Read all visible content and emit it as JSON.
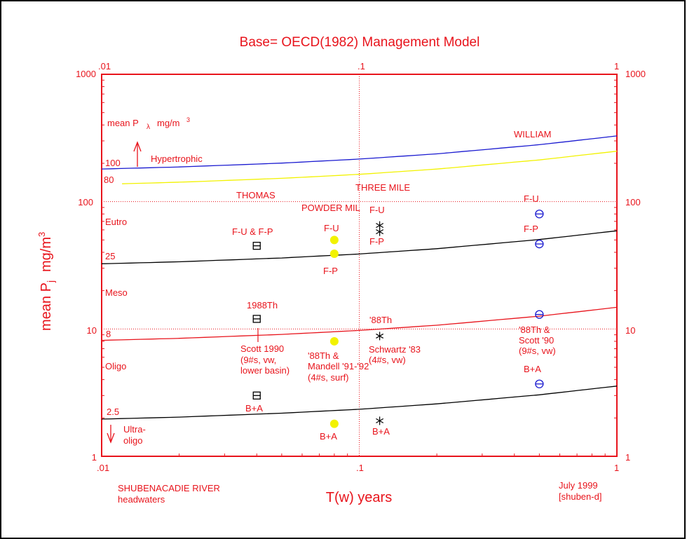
{
  "chart_data": {
    "type": "scatter",
    "title": "Base= OECD(1982) Management Model",
    "xlabel": "T(w) years",
    "ylabel_main": "mean P",
    "ylabel_sub": "j",
    "ylabel_units": "mg/m",
    "ylabel_sup": "3",
    "xscale": "log",
    "yscale": "log",
    "xlim": [
      0.01,
      1
    ],
    "ylim": [
      1,
      1000
    ],
    "x_ticks_top": [
      ".01",
      ".1",
      "1"
    ],
    "x_ticks_bottom": [
      ".01",
      ".1",
      "1"
    ],
    "y_ticks_left": [
      "1000",
      "100",
      "10",
      "1"
    ],
    "y_ticks_right": [
      "1000",
      "100",
      "10",
      "1"
    ],
    "gridlines": {
      "y": [
        10,
        100
      ],
      "x": [
        0.1
      ],
      "style": "dotted"
    },
    "colors": {
      "axis": "#e8141c",
      "blue": "#1a1ad0",
      "yellow": "#f2f200",
      "black": "#000000",
      "red": "#e8141c"
    },
    "curves": [
      {
        "name": "hypertrophic-boundary-100",
        "color": "#1a1ad0",
        "x": [
          0.01,
          0.02,
          0.05,
          0.1,
          0.2,
          0.5,
          1
        ],
        "y": [
          180.4,
          187.2,
          200.7,
          215.9,
          237.3,
          280.0,
          328
        ]
      },
      {
        "name": "boundary-80",
        "color": "#f2f200",
        "x": [
          0.012,
          0.02,
          0.05,
          0.1,
          0.2,
          0.5,
          1
        ],
        "y": [
          138.1,
          142.1,
          152.4,
          163.8,
          180.2,
          212.5,
          249
        ]
      },
      {
        "name": "eutro-boundary-25",
        "color": "#000000",
        "x": [
          0.01,
          0.02,
          0.05,
          0.1,
          0.2,
          0.5,
          1
        ],
        "y": [
          32.5,
          33.7,
          36.1,
          38.8,
          42.7,
          50.4,
          59
        ]
      },
      {
        "name": "meso-boundary-8",
        "color": "#e8141c",
        "x": [
          0.01,
          0.02,
          0.05,
          0.1,
          0.2,
          0.5,
          1
        ],
        "y": [
          8.14,
          8.44,
          9.06,
          9.74,
          10.7,
          12.6,
          14.8
        ]
      },
      {
        "name": "oligo-boundary-2.5",
        "color": "#000000",
        "x": [
          0.01,
          0.02,
          0.05,
          0.1,
          0.2,
          0.5,
          1
        ],
        "y": [
          1.96,
          2.03,
          2.18,
          2.34,
          2.58,
          3.04,
          3.56
        ]
      }
    ],
    "series": [
      {
        "name": "THOMAS",
        "marker": "square",
        "color": "#000000",
        "points": [
          {
            "x": 0.04,
            "y": 45
          },
          {
            "x": 0.04,
            "y": 12
          },
          {
            "x": 0.04,
            "y": 3.0
          }
        ]
      },
      {
        "name": "POWDER MILL",
        "marker": "filled-circle",
        "color": "#f2f200",
        "points": [
          {
            "x": 0.08,
            "y": 50
          },
          {
            "x": 0.08,
            "y": 39
          },
          {
            "x": 0.08,
            "y": 8.0
          },
          {
            "x": 0.08,
            "y": 1.8
          }
        ]
      },
      {
        "name": "THREE MILE",
        "marker": "asterisk",
        "color": "#000000",
        "points": [
          {
            "x": 0.12,
            "y": 65
          },
          {
            "x": 0.12,
            "y": 58
          },
          {
            "x": 0.12,
            "y": 8.8
          },
          {
            "x": 0.12,
            "y": 1.9
          }
        ]
      },
      {
        "name": "WILLIAM",
        "marker": "theta-circle",
        "color": "#1a1ad0",
        "points": [
          {
            "x": 0.5,
            "y": 80
          },
          {
            "x": 0.5,
            "y": 46.5
          },
          {
            "x": 0.5,
            "y": 13
          },
          {
            "x": 0.5,
            "y": 3.7
          }
        ]
      }
    ],
    "annotations": [
      "mean P",
      "λ",
      "mg/m",
      "3",
      "100",
      "Hypertrophic",
      "80",
      "Eutro",
      "25",
      "Meso",
      "8",
      "Oligo",
      "2.5",
      "Ultra-",
      "oligo",
      "THOMAS",
      "F-U & F-P",
      "1988Th",
      "Scott 1990",
      "(9#s, vw,",
      "lower basin)",
      "B+A",
      "POWDER MIL",
      "F-U",
      "F-P",
      "'88Th &",
      "Mandell '91-'92",
      "(4#s, surf)",
      "B+A",
      "THREE MILE",
      "F-U",
      "F-P",
      "'88Th",
      "Schwartz '83",
      "(4#s, vw)",
      "B+A",
      "WILLIAM",
      "F-U",
      "F-P",
      "'88Th &",
      "Scott '90",
      "(9#s, vw)",
      "B+A",
      "SHUBENACADIE RIVER",
      "headwaters",
      "July 1999",
      "[shuben-d]"
    ]
  }
}
